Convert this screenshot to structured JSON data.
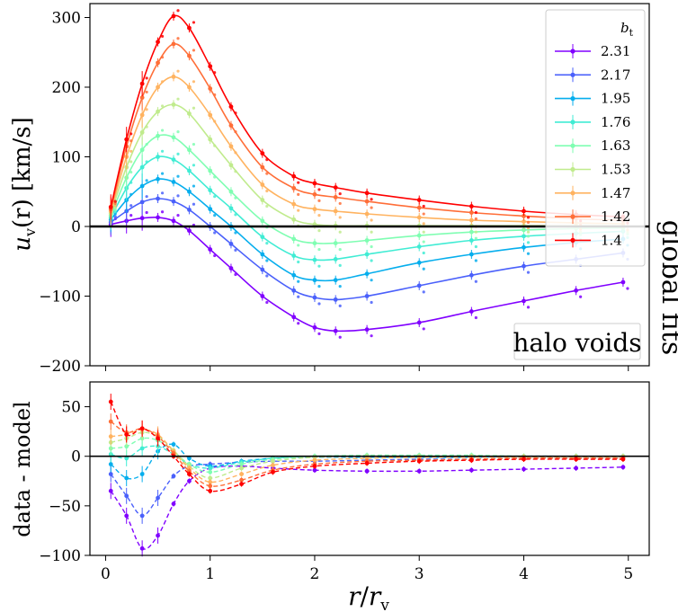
{
  "chart_data": [
    {
      "type": "line",
      "panel": "top",
      "title": "",
      "xlabel": "",
      "ylabel": "u_v(r) [km/s]",
      "ylabel_parts": {
        "main": "u",
        "sub": "v",
        "rest": "(r) [km/s]"
      },
      "xlim": [
        -0.15,
        5.2
      ],
      "ylim": [
        -200,
        320
      ],
      "y_ticks": [
        "300",
        "200",
        "100",
        "0",
        "−100",
        "−200"
      ],
      "y_tick_values": [
        300,
        200,
        100,
        0,
        -100,
        -200
      ],
      "annotation": "halo voids",
      "side_label": "global fits",
      "legend": {
        "title": "b",
        "title_sub": "t",
        "location": "upper-right",
        "entries": [
          "2.31",
          "2.17",
          "1.95",
          "1.76",
          "1.63",
          "1.53",
          "1.47",
          "1.42",
          "1.4"
        ]
      },
      "series": [
        {
          "name": "2.31",
          "color": "#8000ff",
          "x": [
            0.05,
            0.2,
            0.35,
            0.5,
            0.65,
            0.8,
            1.0,
            1.2,
            1.5,
            1.8,
            2.0,
            2.2,
            2.5,
            3.0,
            3.5,
            4.0,
            4.5,
            4.95
          ],
          "values": [
            3,
            8,
            12,
            13,
            8,
            -6,
            -33,
            -60,
            -100,
            -130,
            -145,
            -150,
            -148,
            -138,
            -122,
            -107,
            -92,
            -80
          ]
        },
        {
          "name": "2.17",
          "color": "#4a60fb",
          "x": [
            0.05,
            0.2,
            0.35,
            0.5,
            0.65,
            0.8,
            1.0,
            1.2,
            1.5,
            1.8,
            2.0,
            2.2,
            2.5,
            3.0,
            3.5,
            4.0,
            4.5,
            4.95
          ],
          "values": [
            6,
            22,
            35,
            40,
            36,
            24,
            0,
            -25,
            -62,
            -92,
            -102,
            -105,
            -100,
            -85,
            -70,
            -57,
            -47,
            -38
          ]
        },
        {
          "name": "1.95",
          "color": "#06aeed",
          "x": [
            0.05,
            0.2,
            0.35,
            0.5,
            0.65,
            0.8,
            1.0,
            1.2,
            1.5,
            1.8,
            2.0,
            2.2,
            2.5,
            3.0,
            3.5,
            4.0,
            4.5,
            4.95
          ],
          "values": [
            10,
            38,
            58,
            68,
            64,
            50,
            25,
            0,
            -40,
            -70,
            -77,
            -77,
            -68,
            -52,
            -40,
            -30,
            -23,
            -18
          ]
        },
        {
          "name": "1.76",
          "color": "#40ecd4",
          "x": [
            0.05,
            0.2,
            0.35,
            0.5,
            0.65,
            0.8,
            1.0,
            1.2,
            1.5,
            1.8,
            2.0,
            2.2,
            2.5,
            3.0,
            3.5,
            4.0,
            4.5,
            4.95
          ],
          "values": [
            13,
            55,
            85,
            100,
            96,
            80,
            52,
            26,
            -15,
            -42,
            -48,
            -47,
            -40,
            -29,
            -20,
            -14,
            -10,
            -7
          ]
        },
        {
          "name": "1.63",
          "color": "#7ffeb2",
          "x": [
            0.05,
            0.2,
            0.35,
            0.5,
            0.65,
            0.8,
            1.0,
            1.2,
            1.5,
            1.8,
            2.0,
            2.2,
            2.5,
            3.0,
            3.5,
            4.0,
            4.5,
            4.95
          ],
          "values": [
            16,
            70,
            110,
            130,
            128,
            110,
            80,
            50,
            8,
            -18,
            -24,
            -24,
            -20,
            -13,
            -8,
            -5,
            -3,
            -2
          ]
        },
        {
          "name": "1.53",
          "color": "#c0eb8d",
          "x": [
            0.05,
            0.2,
            0.35,
            0.5,
            0.65,
            0.8,
            1.0,
            1.2,
            1.5,
            1.8,
            2.0,
            2.2,
            2.5,
            3.0,
            3.5,
            4.0,
            4.5,
            4.95
          ],
          "values": [
            19,
            85,
            135,
            165,
            175,
            162,
            125,
            88,
            38,
            10,
            3,
            1,
            1,
            1,
            1,
            1,
            1,
            1
          ]
        },
        {
          "name": "1.47",
          "color": "#ffb360",
          "x": [
            0.05,
            0.2,
            0.35,
            0.5,
            0.65,
            0.8,
            1.0,
            1.2,
            1.5,
            1.8,
            2.0,
            2.2,
            2.5,
            3.0,
            3.5,
            4.0,
            4.5,
            4.95
          ],
          "values": [
            22,
            100,
            160,
            200,
            215,
            200,
            160,
            115,
            60,
            32,
            25,
            22,
            18,
            13,
            9,
            7,
            5,
            4
          ]
        },
        {
          "name": "1.42",
          "color": "#ff6e38",
          "x": [
            0.05,
            0.2,
            0.35,
            0.5,
            0.65,
            0.8,
            1.0,
            1.2,
            1.5,
            1.8,
            2.0,
            2.2,
            2.5,
            3.0,
            3.5,
            4.0,
            4.5,
            4.95
          ],
          "values": [
            25,
            115,
            185,
            235,
            262,
            245,
            198,
            145,
            85,
            55,
            46,
            42,
            36,
            27,
            20,
            15,
            11,
            9
          ]
        },
        {
          "name": "1.4",
          "color": "#ff0000",
          "x": [
            0.05,
            0.2,
            0.35,
            0.5,
            0.65,
            0.8,
            1.0,
            1.2,
            1.5,
            1.8,
            2.0,
            2.2,
            2.5,
            3.0,
            3.5,
            4.0,
            4.5,
            4.95
          ],
          "values": [
            28,
            125,
            205,
            265,
            302,
            285,
            230,
            172,
            105,
            72,
            62,
            56,
            48,
            38,
            29,
            22,
            17,
            14
          ]
        }
      ]
    },
    {
      "type": "line",
      "panel": "bottom",
      "title": "",
      "xlabel": "r/r_v",
      "xlabel_parts": {
        "a": "r",
        "b": "r",
        "sub": "v"
      },
      "ylabel": "data - model",
      "xlim": [
        -0.15,
        5.2
      ],
      "ylim": [
        -100,
        75
      ],
      "x_ticks": [
        "0",
        "1",
        "2",
        "3",
        "4",
        "5"
      ],
      "x_tick_values": [
        0,
        1,
        2,
        3,
        4,
        5
      ],
      "y_ticks": [
        "50",
        "0",
        "−50",
        "−100"
      ],
      "y_tick_values": [
        50,
        0,
        -50,
        -100
      ],
      "series": [
        {
          "name": "2.31",
          "color": "#8000ff",
          "x": [
            0.05,
            0.2,
            0.35,
            0.5,
            0.65,
            0.8,
            1.0,
            1.3,
            1.6,
            2.0,
            2.5,
            3.0,
            3.5,
            4.0,
            4.5,
            4.95
          ],
          "values": [
            -35,
            -60,
            -93,
            -80,
            -48,
            -25,
            -12,
            -10,
            -12,
            -14,
            -15,
            -15,
            -14,
            -13,
            -12,
            -11
          ]
        },
        {
          "name": "2.17",
          "color": "#4a60fb",
          "x": [
            0.05,
            0.2,
            0.35,
            0.5,
            0.65,
            0.8,
            1.0,
            1.3,
            1.6,
            2.0,
            2.5,
            3.0,
            3.5,
            4.0,
            4.5,
            4.95
          ],
          "values": [
            -18,
            -40,
            -60,
            -42,
            -20,
            -10,
            -8,
            -6,
            -5,
            -5,
            -4,
            -3,
            -3,
            -2,
            -2,
            -2
          ]
        },
        {
          "name": "1.95",
          "color": "#06aeed",
          "x": [
            0.05,
            0.2,
            0.35,
            0.5,
            0.65,
            0.8,
            1.0,
            1.3,
            1.6,
            2.0,
            2.5,
            3.0,
            3.5,
            4.0,
            4.5,
            4.95
          ],
          "values": [
            -8,
            -22,
            -18,
            5,
            12,
            -2,
            -10,
            -5,
            -2,
            -1,
            -1,
            -1,
            -1,
            0,
            0,
            0
          ]
        },
        {
          "name": "1.76",
          "color": "#40ecd4",
          "x": [
            0.05,
            0.2,
            0.35,
            0.5,
            0.65,
            0.8,
            1.0,
            1.3,
            1.6,
            2.0,
            2.5,
            3.0,
            3.5,
            4.0,
            4.5,
            4.95
          ],
          "values": [
            2,
            -2,
            8,
            10,
            2,
            -8,
            -12,
            -6,
            -2,
            0,
            0,
            0,
            0,
            0,
            0,
            0
          ]
        },
        {
          "name": "1.63",
          "color": "#7ffeb2",
          "x": [
            0.05,
            0.2,
            0.35,
            0.5,
            0.65,
            0.8,
            1.0,
            1.3,
            1.6,
            2.0,
            2.5,
            3.0,
            3.5,
            4.0,
            4.5,
            4.95
          ],
          "values": [
            8,
            10,
            18,
            16,
            5,
            -8,
            -16,
            -8,
            -3,
            0,
            1,
            1,
            1,
            0,
            0,
            0
          ]
        },
        {
          "name": "1.53",
          "color": "#c0eb8d",
          "x": [
            0.05,
            0.2,
            0.35,
            0.5,
            0.65,
            0.8,
            1.0,
            1.3,
            1.6,
            2.0,
            2.5,
            3.0,
            3.5,
            4.0,
            4.5,
            4.95
          ],
          "values": [
            14,
            18,
            24,
            20,
            6,
            -10,
            -22,
            -12,
            -5,
            -1,
            0,
            0,
            0,
            0,
            0,
            0
          ]
        },
        {
          "name": "1.47",
          "color": "#ffb360",
          "x": [
            0.05,
            0.2,
            0.35,
            0.5,
            0.65,
            0.8,
            1.0,
            1.3,
            1.6,
            2.0,
            2.5,
            3.0,
            3.5,
            4.0,
            4.5,
            4.95
          ],
          "values": [
            20,
            22,
            27,
            22,
            5,
            -12,
            -26,
            -18,
            -9,
            -4,
            -2,
            -1,
            -1,
            -1,
            -1,
            -1
          ]
        },
        {
          "name": "1.42",
          "color": "#ff6e38",
          "x": [
            0.05,
            0.2,
            0.35,
            0.5,
            0.65,
            0.8,
            1.0,
            1.3,
            1.6,
            2.0,
            2.5,
            3.0,
            3.5,
            4.0,
            4.5,
            4.95
          ],
          "values": [
            35,
            24,
            28,
            20,
            3,
            -15,
            -30,
            -24,
            -14,
            -8,
            -5,
            -4,
            -3,
            -2,
            -2,
            -2
          ]
        },
        {
          "name": "1.4",
          "color": "#ff0000",
          "x": [
            0.05,
            0.2,
            0.35,
            0.5,
            0.65,
            0.8,
            1.0,
            1.3,
            1.6,
            2.0,
            2.5,
            3.0,
            3.5,
            4.0,
            4.5,
            4.95
          ],
          "values": [
            55,
            22,
            28,
            18,
            0,
            -18,
            -35,
            -28,
            -16,
            -10,
            -7,
            -5,
            -4,
            -3,
            -3,
            -3
          ]
        }
      ]
    }
  ]
}
